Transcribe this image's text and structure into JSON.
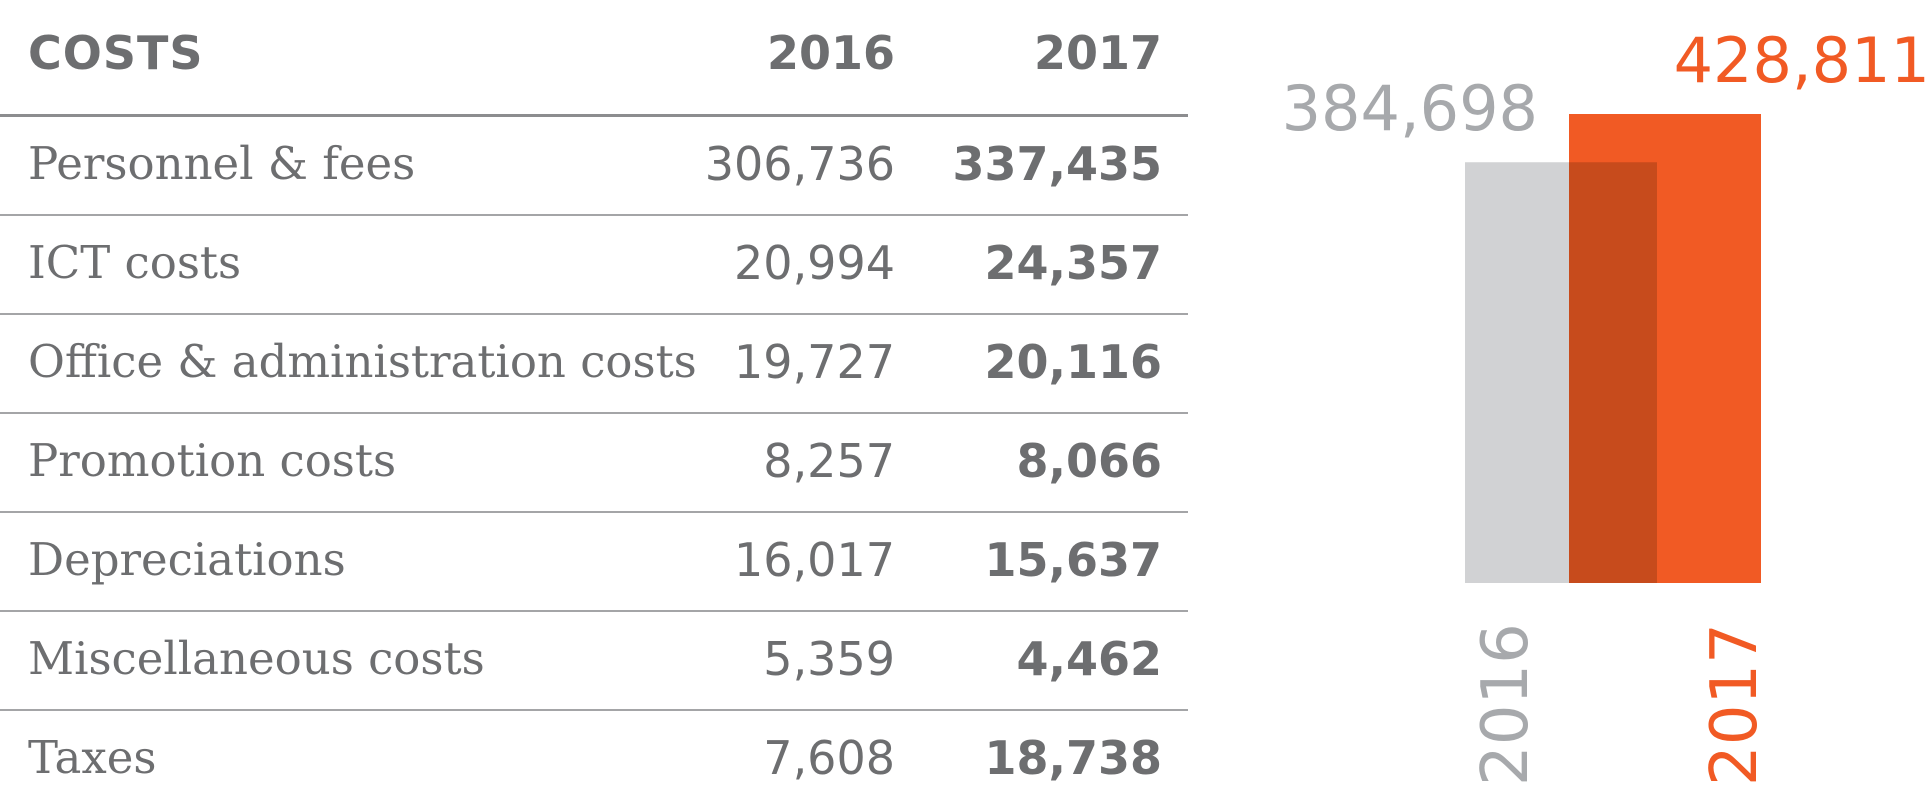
{
  "table": {
    "header": {
      "label": "COSTS",
      "col_2016": "2016",
      "col_2017": "2017"
    },
    "rows": [
      {
        "label": "Personnel & fees",
        "v2016": "306,736",
        "v2017": "337,435"
      },
      {
        "label": "ICT costs",
        "v2016": "20,994",
        "v2017": "24,357"
      },
      {
        "label": "Office & administration costs",
        "v2016": "19,727",
        "v2017": "20,116"
      },
      {
        "label": "Promotion costs",
        "v2016": "8,257",
        "v2017": "8,066"
      },
      {
        "label": "Depreciations",
        "v2016": "16,017",
        "v2017": "15,637"
      },
      {
        "label": "Miscellaneous costs",
        "v2016": "5,359",
        "v2017": "4,462"
      },
      {
        "label": "Taxes",
        "v2016": "7,608",
        "v2017": "18,738"
      }
    ]
  },
  "chart_data": {
    "type": "bar",
    "categories": [
      "2016",
      "2017"
    ],
    "values": [
      384698,
      428811
    ],
    "value_labels": [
      "384,698",
      "428,811"
    ],
    "colors": [
      "#d1d2d4",
      "#f15a24"
    ],
    "overlap_color": "#c74b1c",
    "label_colors": [
      "#a7a9ac",
      "#f15a24"
    ],
    "title": "",
    "xlabel": "",
    "ylabel": "",
    "ylim": [
      0,
      428811
    ]
  }
}
